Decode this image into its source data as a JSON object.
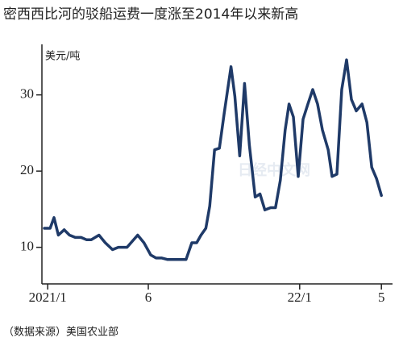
{
  "chart_data": {
    "type": "line",
    "title": "密西西比河的驳船运费一度涨至2014年以来新高",
    "y_unit": "美元/吨",
    "source": "（数据来源）美国农业部",
    "watermark": "日经中文网",
    "x": [
      -0.7,
      0.5,
      1.3,
      2.2,
      3.4,
      4.5,
      5.7,
      6.9,
      8.0,
      9.0,
      10.6,
      11.9,
      13.4,
      14.6,
      16.4,
      18.6,
      19.9,
      21.3,
      22.4,
      23.6,
      24.8,
      26.0,
      27.1,
      28.6,
      29.8,
      30.8,
      31.7,
      32.7,
      33.5,
      34.5,
      35.5,
      36.5,
      37.9,
      38.7,
      39.7,
      40.7,
      41.7,
      42.9,
      43.9,
      44.9,
      46.1,
      47.1,
      48.1,
      49.1,
      49.9,
      50.8,
      51.8,
      52.8,
      53.8,
      54.8,
      55.8,
      56.8,
      58.0,
      58.8,
      59.8,
      60.8,
      61.8,
      62.8,
      63.8,
      65.0,
      66.0,
      67.0,
      68.0,
      69.0
    ],
    "series": [
      {
        "name": "驳船运费",
        "color": "#1f3a68",
        "values": [
          12.5,
          12.5,
          13.9,
          11.6,
          12.3,
          11.6,
          11.3,
          11.3,
          11.0,
          11.0,
          11.6,
          10.6,
          9.7,
          10.0,
          10.0,
          11.6,
          10.6,
          9.0,
          8.6,
          8.6,
          8.4,
          8.4,
          8.4,
          8.4,
          10.6,
          10.6,
          11.6,
          12.5,
          15.4,
          22.8,
          23.0,
          27.6,
          33.7,
          29.8,
          22.0,
          31.5,
          23.4,
          16.6,
          17.0,
          14.9,
          15.2,
          15.2,
          18.8,
          25.4,
          28.8,
          27.1,
          19.3,
          26.8,
          28.8,
          30.7,
          28.8,
          25.4,
          22.8,
          19.3,
          19.6,
          30.7,
          34.6,
          29.4,
          27.9,
          28.8,
          26.4,
          20.5,
          19.0,
          16.8
        ]
      }
    ],
    "xlim": [
      -1.2,
      71.3
    ],
    "xticks": [
      {
        "value": 0,
        "label": "2021/1"
      },
      {
        "value": 20.8,
        "label": "6"
      },
      {
        "value": 52.1,
        "label": "22/1"
      },
      {
        "value": 69,
        "label": "5"
      }
    ],
    "ylim": [
      5.2,
      36.1
    ],
    "yticks": [
      10,
      20,
      30
    ]
  }
}
